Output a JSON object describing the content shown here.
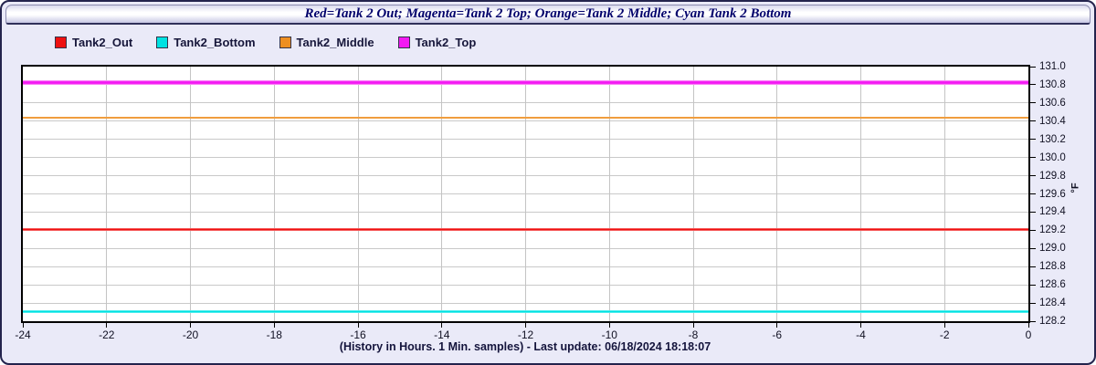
{
  "window": {
    "title": "Red=Tank 2 Out; Magenta=Tank 2 Top; Orange=Tank 2 Middle; Cyan Tank 2 Bottom",
    "caption": "(History in Hours. 1 Min. samples) - Last update: 06/18/2024 18:18:07",
    "last_update": "06/18/2024 18:18:07"
  },
  "colors": {
    "frame_background": "#eaeaf8",
    "frame_border": "#23234d",
    "titlebar_text": "#00006b",
    "plot_background": "#ffffff",
    "plot_border": "#000000",
    "gridline": "#c9c9c9",
    "red": "#ee1111",
    "cyan": "#00e2e2",
    "orange": "#ee8f22",
    "magenta": "#f318f3"
  },
  "chart_data": {
    "type": "line",
    "title": "Red=Tank 2 Out; Magenta=Tank 2 Top; Orange=Tank 2 Middle; Cyan Tank 2 Bottom",
    "xlabel": "(History in Hours. 1 Min. samples) - Last update: 06/18/2024 18:18:07",
    "ylabel": "°F",
    "xlim": [
      -24,
      0
    ],
    "ylim": [
      128.2,
      131.0
    ],
    "x_ticks": [
      -24,
      -22,
      -20,
      -18,
      -16,
      -14,
      -12,
      -10,
      -8,
      -6,
      -4,
      -2,
      0
    ],
    "y_ticks": [
      128.2,
      128.4,
      128.6,
      128.8,
      129.0,
      129.2,
      129.4,
      129.6,
      129.8,
      130.0,
      130.2,
      130.4,
      130.6,
      130.8,
      131.0
    ],
    "grid": true,
    "legend_position": "top-left",
    "history_window_hours": 24,
    "sample_interval": "1 Min.",
    "series": [
      {
        "name": "Tank2_Out",
        "color_name": "Red",
        "color": "#ee1111",
        "halo": "#ffb0b0",
        "thickness": 3,
        "shape": "constant",
        "y_constant": 129.21,
        "x_range": [
          -24,
          0
        ]
      },
      {
        "name": "Tank2_Bottom",
        "color_name": "Cyan",
        "color": "#00e2e2",
        "halo": "#aef8f8",
        "thickness": 3,
        "shape": "constant",
        "y_constant": 128.31,
        "x_range": [
          -24,
          0
        ]
      },
      {
        "name": "Tank2_Middle",
        "color_name": "Orange",
        "color": "#ee8f22",
        "halo": "#f6c083",
        "thickness": 2,
        "shape": "constant",
        "y_constant": 130.44,
        "x_range": [
          -24,
          0
        ]
      },
      {
        "name": "Tank2_Top",
        "color_name": "Magenta",
        "color": "#f318f3",
        "halo": "#ffb9f8",
        "thickness": 5,
        "shape": "constant",
        "y_constant": 130.82,
        "x_range": [
          -24,
          0
        ]
      }
    ]
  }
}
